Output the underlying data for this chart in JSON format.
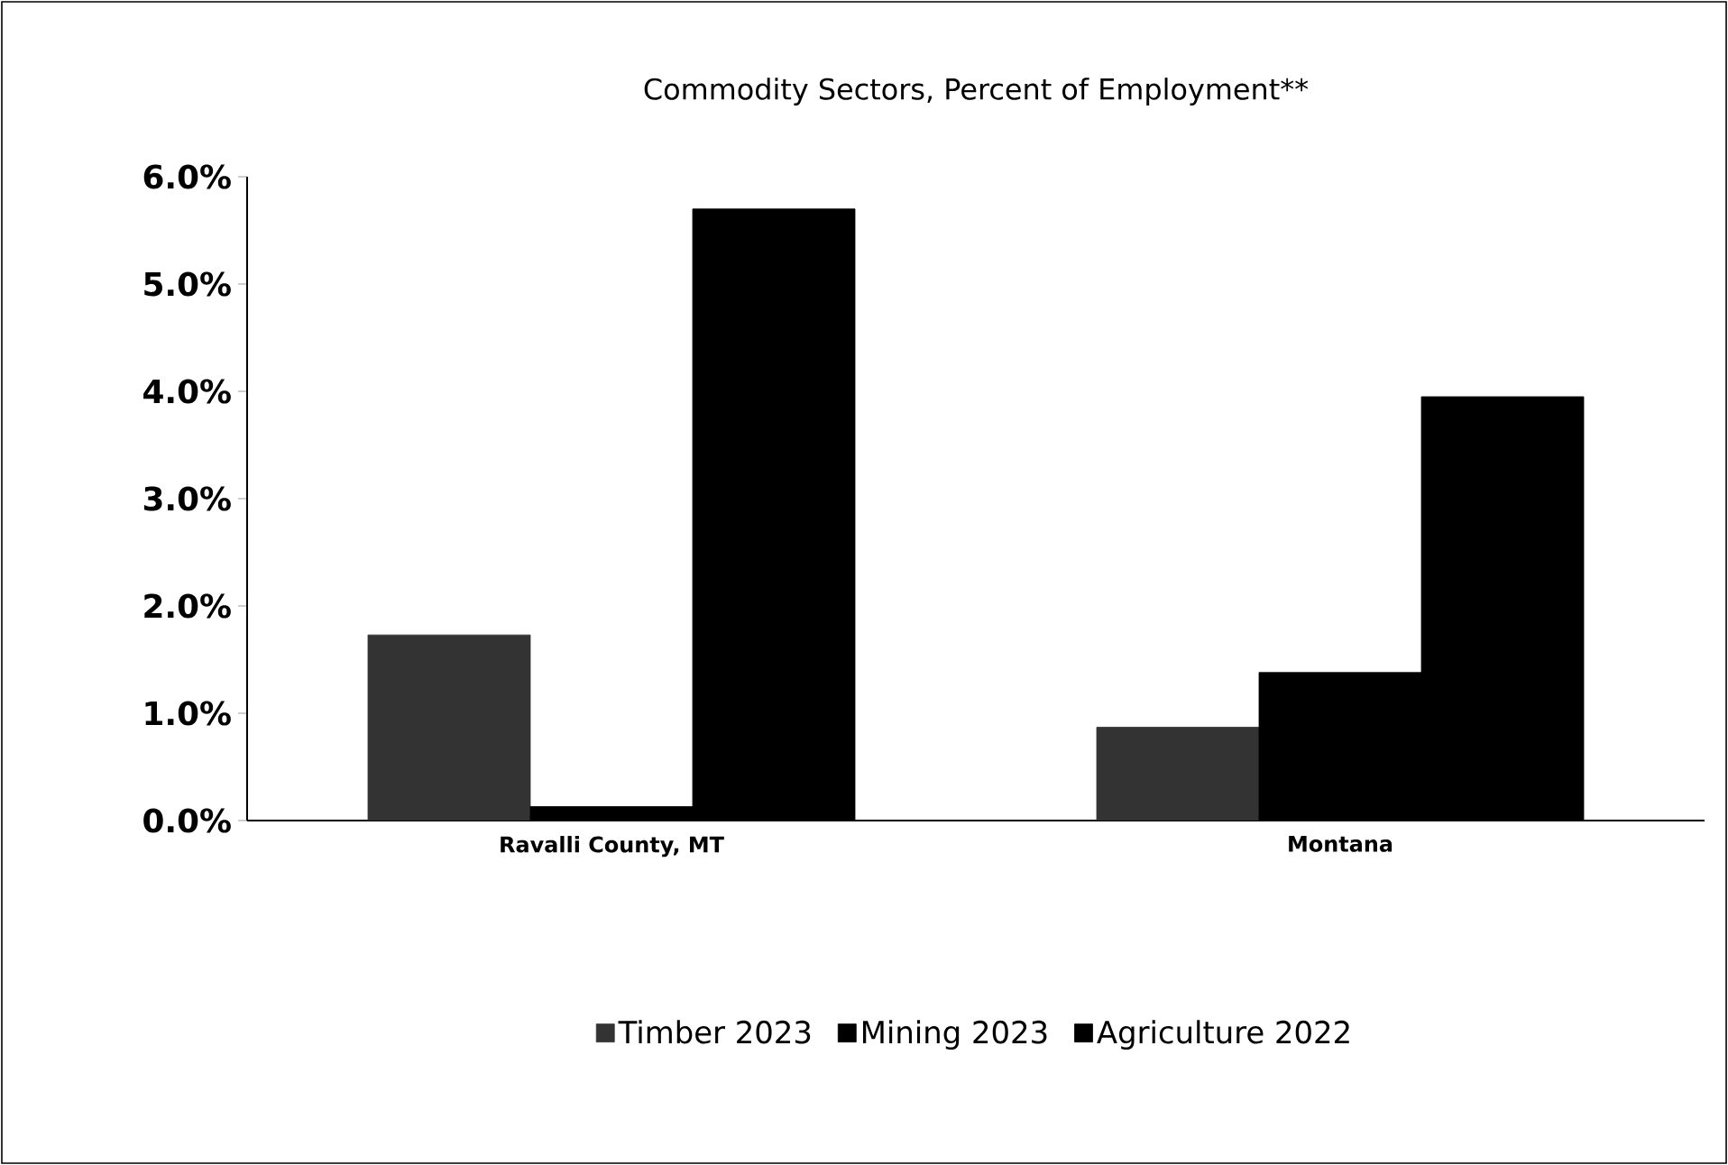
{
  "chart_data": {
    "type": "bar",
    "title": "Commodity Sectors, Percent of Employment**",
    "categories": [
      "Ravalli County, MT",
      "Montana"
    ],
    "series": [
      {
        "name": "Timber 2023",
        "color": "#333333",
        "values": [
          1.73,
          0.87
        ]
      },
      {
        "name": "Mining 2023",
        "color": "#000000",
        "values": [
          0.13,
          1.38
        ]
      },
      {
        "name": "Agriculture 2022",
        "color": "#000000",
        "values": [
          5.7,
          3.95
        ]
      }
    ],
    "ylim": [
      0,
      6
    ],
    "yticks": [
      {
        "value": 0,
        "label": "0.0%"
      },
      {
        "value": 1,
        "label": "1.0%"
      },
      {
        "value": 2,
        "label": "2.0%"
      },
      {
        "value": 3,
        "label": "3.0%"
      },
      {
        "value": 4,
        "label": "4.0%"
      },
      {
        "value": 5,
        "label": "5.0%"
      },
      {
        "value": 6,
        "label": "6.0%"
      }
    ],
    "legend": "bottom"
  }
}
